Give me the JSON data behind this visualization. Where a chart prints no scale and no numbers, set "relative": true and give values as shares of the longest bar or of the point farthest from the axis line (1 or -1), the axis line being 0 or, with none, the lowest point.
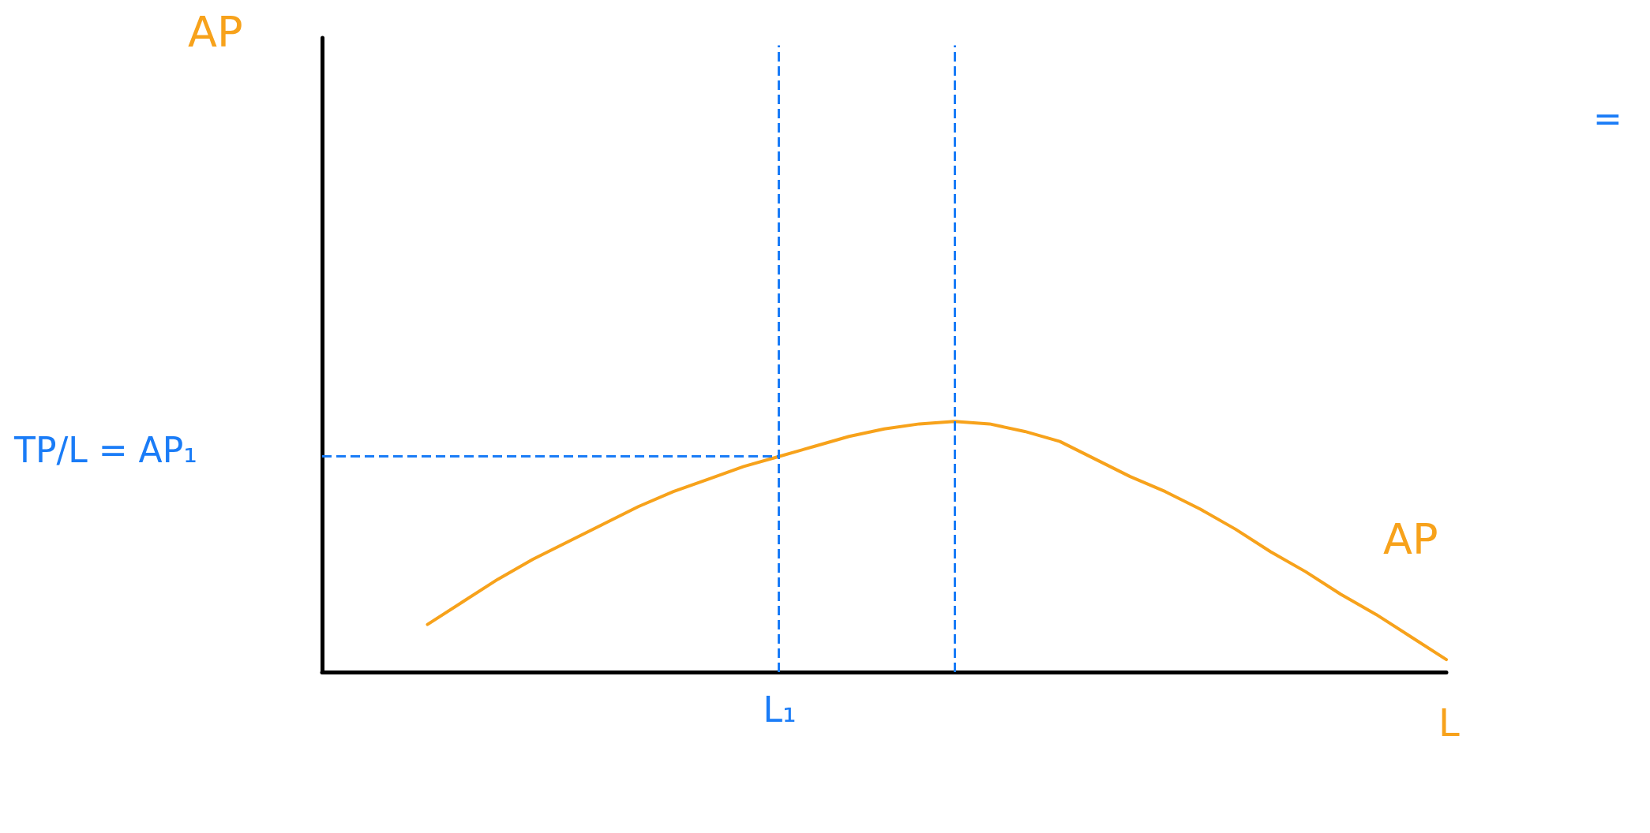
{
  "chart_data": {
    "type": "line",
    "relative": true,
    "xlabel": "L",
    "annotations": [
      "TP/L = AP₁",
      "=",
      "L₁",
      "AP"
    ],
    "categories": [
      null,
      null,
      null,
      null,
      null,
      null,
      null,
      null,
      null,
      null,
      null,
      null,
      null,
      null,
      null,
      null,
      null,
      null,
      null,
      null,
      null,
      null,
      null,
      null,
      null,
      null,
      null,
      null,
      null,
      null,
      null,
      null,
      null
    ],
    "series": [
      {
        "name": "AP",
        "color": "#f7a21b",
        "values": [
          null,
          null,
          null,
          0.19,
          0.28,
          0.37,
          0.45,
          0.52,
          0.59,
          0.66,
          0.72,
          0.77,
          0.82,
          0.86,
          0.9,
          0.94,
          0.97,
          0.99,
          1,
          0.99,
          0.96,
          0.92,
          0.85,
          0.78,
          0.72,
          0.65,
          0.57,
          0.48,
          0.4,
          0.31,
          0.23,
          0.14,
          0.05
        ]
      }
    ],
    "ref_lines": [
      {
        "axis": "y",
        "value": 0.86,
        "color": "#1a7cf7",
        "line_style": "dashed"
      }
    ],
    "grid": false,
    "legend": false,
    "marker": "none",
    "line_style": "solid"
  }
}
